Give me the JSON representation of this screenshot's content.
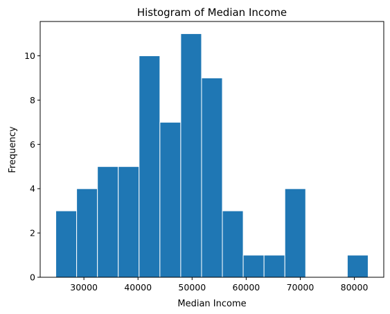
{
  "chart_data": {
    "type": "bar",
    "title": "Histogram of Median Income",
    "xlabel": "Median Income",
    "ylabel": "Frequency",
    "bin_edges": [
      24800,
      28650,
      32500,
      36350,
      40200,
      44050,
      47900,
      51750,
      55600,
      59450,
      63300,
      67150,
      71000,
      74850,
      78700,
      82550
    ],
    "values": [
      3,
      4,
      5,
      5,
      10,
      7,
      11,
      9,
      3,
      1,
      1,
      4,
      0,
      0,
      1
    ],
    "xlim": [
      21912.5,
      85437.5
    ],
    "ylim": [
      0,
      11.55
    ],
    "xticks": [
      30000,
      40000,
      50000,
      60000,
      70000,
      80000
    ],
    "xtick_labels": [
      "30000",
      "40000",
      "50000",
      "60000",
      "70000",
      "80000"
    ],
    "yticks": [
      0,
      2,
      4,
      6,
      8,
      10
    ],
    "ytick_labels": [
      "0",
      "2",
      "4",
      "6",
      "8",
      "10"
    ],
    "grid": false,
    "legend": "none",
    "bar_color": "#1f77b4",
    "bar_edge_color": "#ffffff"
  }
}
